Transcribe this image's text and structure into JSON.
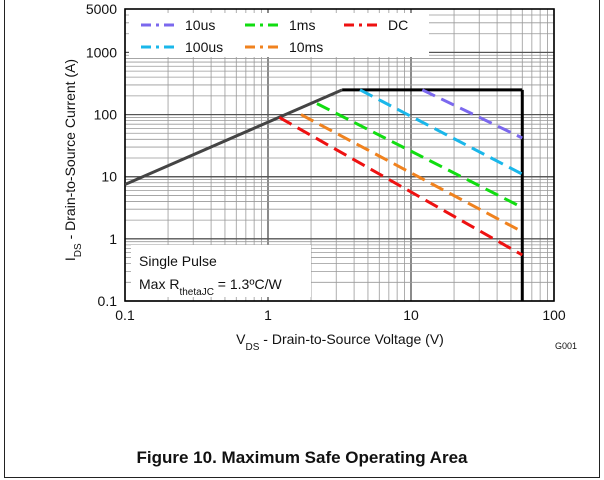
{
  "chart_data": {
    "type": "line",
    "x_scale": "log",
    "y_scale": "log",
    "xlim": [
      0.1,
      100
    ],
    "ylim": [
      0.1,
      5000
    ],
    "x_ticks": [
      "0.1",
      "1",
      "10",
      "100"
    ],
    "y_ticks": [
      "0.1",
      "1",
      "10",
      "100",
      "1000",
      "5000"
    ],
    "ylabel_main": "I",
    "ylabel_sub": "DS",
    "ylabel_rest": " - Drain-to-Source Current (A)",
    "xlabel_main": "V",
    "xlabel_sub": "DS",
    "xlabel_rest": " - Drain-to-Source Voltage (V)",
    "grid": true,
    "legend_position": "top",
    "boundary": {
      "rdson_line": [
        [
          0.1,
          7.5
        ],
        [
          3.3,
          250
        ]
      ],
      "current_limit": 250,
      "voltage_limit": 60
    },
    "series": [
      {
        "name": "10us",
        "color": "#7b68ee",
        "points": [
          [
            12,
            250
          ],
          [
            60,
            42
          ]
        ]
      },
      {
        "name": "100us",
        "color": "#1ab7ea",
        "points": [
          [
            4.4,
            250
          ],
          [
            60,
            11
          ]
        ]
      },
      {
        "name": "1ms",
        "color": "#11dd11",
        "points": [
          [
            2.2,
            150
          ],
          [
            60,
            3.2
          ]
        ]
      },
      {
        "name": "10ms",
        "color": "#f0821e",
        "points": [
          [
            1.7,
            100
          ],
          [
            60,
            1.3
          ]
        ]
      },
      {
        "name": "DC",
        "color": "#ee1111",
        "points": [
          [
            1.2,
            90
          ],
          [
            60,
            0.55
          ]
        ]
      }
    ],
    "annotation": {
      "line1": "Single Pulse",
      "line2_main": "Max R",
      "line2_sub": "thetaJC",
      "line2_rest": " = 1.3ºC/W"
    },
    "figure_id": "G001"
  },
  "caption": "Figure 10. Maximum Safe Operating Area"
}
